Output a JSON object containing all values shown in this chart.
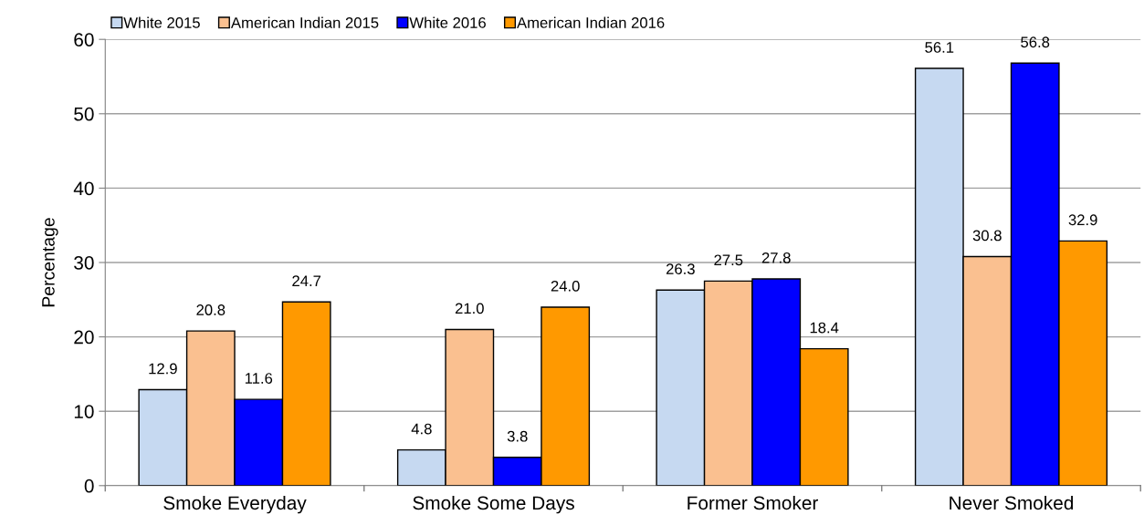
{
  "chart_data": {
    "type": "bar",
    "ylabel": "Percentage",
    "categories": [
      "Smoke Everyday",
      "Smoke Some Days",
      "Former Smoker",
      "Never Smoked"
    ],
    "series": [
      {
        "name": "White 2015",
        "color": "#c6d9f1",
        "values": [
          12.9,
          4.8,
          26.3,
          56.1
        ],
        "value_labels": [
          "12.9",
          "4.8",
          "26.3",
          "56.1"
        ]
      },
      {
        "name": "American Indian 2015",
        "color": "#fac090",
        "values": [
          20.8,
          21.0,
          27.5,
          30.8
        ],
        "value_labels": [
          "20.8",
          "21.0",
          "27.5",
          "30.8"
        ]
      },
      {
        "name": "White 2016",
        "color": "#0000ff",
        "values": [
          11.6,
          3.8,
          27.8,
          56.8
        ],
        "value_labels": [
          "11.6",
          "3.8",
          "27.8",
          "56.8"
        ]
      },
      {
        "name": "American Indian 2016",
        "color": "#ff9900",
        "values": [
          24.7,
          24.0,
          18.4,
          32.9
        ],
        "value_labels": [
          "24.7",
          "24.0",
          "18.4",
          "32.9"
        ]
      }
    ],
    "ylim": [
      0,
      60
    ],
    "yticks": [
      0,
      10,
      20,
      30,
      40,
      50,
      60
    ],
    "grid": "y",
    "legend": "top"
  }
}
